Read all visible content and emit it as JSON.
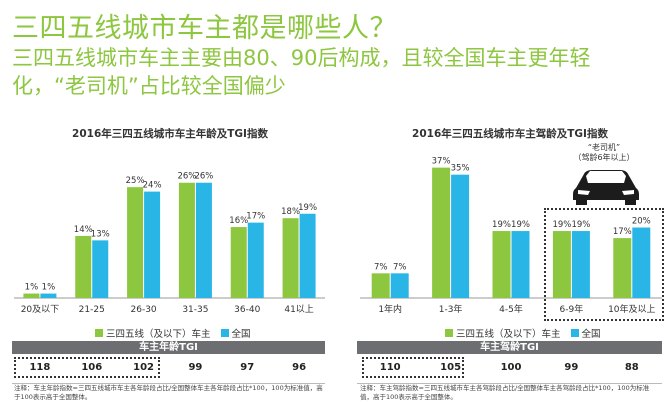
{
  "header": {
    "title": "三四五线城市车主都是哪些人？",
    "subtitle": "三四五线城市车主主要由80、90后构成，且较全国车主更年轻化，“老司机”占比较全国偏少"
  },
  "colors": {
    "accent_green": "#8dc63f",
    "accent_blue": "#29b6e6",
    "bar_green": "#8dc63f",
    "bar_blue": "#29b6e6",
    "band_gray": "#6d6e71"
  },
  "legend": {
    "series1": "三四五线（及以下）车主",
    "series2": "全国"
  },
  "chart_data": [
    {
      "type": "bar",
      "title": "2016年三四五线城市车主年龄及TGI指数",
      "categories": [
        "20及以下",
        "21-25",
        "26-30",
        "31-35",
        "36-40",
        "41以上"
      ],
      "series": [
        {
          "name": "三四五线（及以下）车主",
          "values": [
            1,
            14,
            25,
            26,
            16,
            18
          ],
          "labels": [
            "1%",
            "14%",
            "25%",
            "26%",
            "16%",
            "18%"
          ]
        },
        {
          "name": "全国",
          "values": [
            1,
            13,
            24,
            26,
            17,
            19
          ],
          "labels": [
            "1%",
            "13%",
            "24%",
            "26%",
            "17%",
            "19%"
          ]
        }
      ],
      "ylim": [
        0,
        30
      ],
      "tgi_label": "车主年龄TGI",
      "tgi_values": [
        "118",
        "106",
        "102",
        "99",
        "97",
        "96"
      ],
      "note": "注释：车主年龄指数=三四五线城市车主各年龄段占比/全国整体车主各年龄段占比*100，100为标准值，高于100表示高于全国整体。"
    },
    {
      "type": "bar",
      "title": "2016年三四五线城市车主驾龄及TGI指数",
      "categories": [
        "1年内",
        "1-3年",
        "4-5年",
        "6-9年",
        "10年及以上"
      ],
      "series": [
        {
          "name": "三四五线（及以下）车主",
          "values": [
            7,
            37,
            19,
            19,
            17
          ],
          "labels": [
            "7%",
            "37%",
            "19%",
            "19%",
            "17%"
          ]
        },
        {
          "name": "全国",
          "values": [
            7,
            35,
            19,
            19,
            20
          ],
          "labels": [
            "7%",
            "35%",
            "19%",
            "19%",
            "20%"
          ]
        }
      ],
      "ylim": [
        0,
        42
      ],
      "tgi_label": "车主驾龄TGI",
      "tgi_values": [
        "110",
        "105",
        "100",
        "99",
        "88"
      ],
      "annotation": "“老司机”",
      "annotation_sub": "（驾龄6年以上）",
      "note": "注释：车主驾龄指数=三四五线城市车主各驾龄段占比/全国整体车主各驾龄段占比*100，100为标准值，高于100表示高于全国整体。"
    }
  ]
}
